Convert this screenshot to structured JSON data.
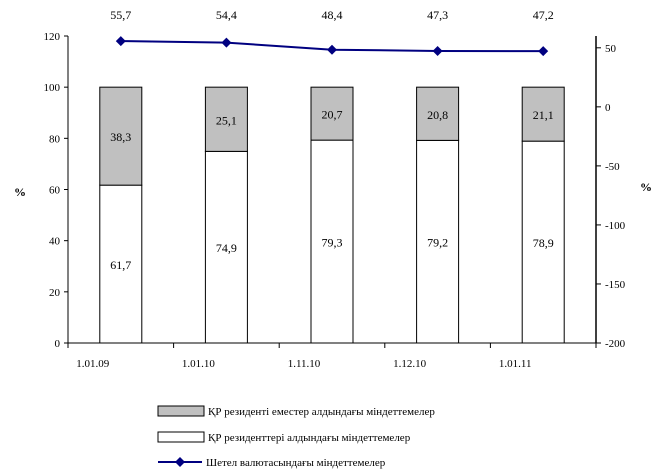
{
  "chart_data": {
    "type": "bar",
    "stacked": true,
    "categories": [
      "1.01.09",
      "1.01.10",
      "1.11.10",
      "1.12.10",
      "1.01.11"
    ],
    "series": [
      {
        "name": "ҚР резиденттері алдындағы міндеттемелер",
        "values": [
          61.7,
          74.9,
          79.3,
          79.2,
          78.9
        ],
        "labels": [
          "61,7",
          "74,9",
          "79,3",
          "79,2",
          "78,9"
        ],
        "color": "#ffffff",
        "axis": "left"
      },
      {
        "name": "ҚР резиденті еместер алдындағы міндеттемелер",
        "values": [
          38.3,
          25.1,
          20.7,
          20.8,
          21.1
        ],
        "labels": [
          "38,3",
          "25,1",
          "20,7",
          "20,8",
          "21,1"
        ],
        "color": "#c0c0c0",
        "axis": "left"
      },
      {
        "name": "Шетел валютасындағы міндеттемелер",
        "type": "line",
        "values": [
          55.7,
          54.4,
          48.4,
          47.3,
          47.2
        ],
        "labels": [
          "55,7",
          "54,4",
          "48,4",
          "47,3",
          "47,2"
        ],
        "color": "#000080",
        "axis": "right"
      }
    ],
    "ylabel": "%",
    "y2label": "%",
    "ylim": [
      0,
      120
    ],
    "y2lim": [
      -200,
      60
    ],
    "yticks": [
      "0",
      "20",
      "40",
      "60",
      "80",
      "100",
      "120"
    ],
    "y2ticks": [
      "-200",
      "-150",
      "-100",
      "-50",
      "0",
      "50"
    ],
    "legend_position": "bottom",
    "grid": false
  }
}
